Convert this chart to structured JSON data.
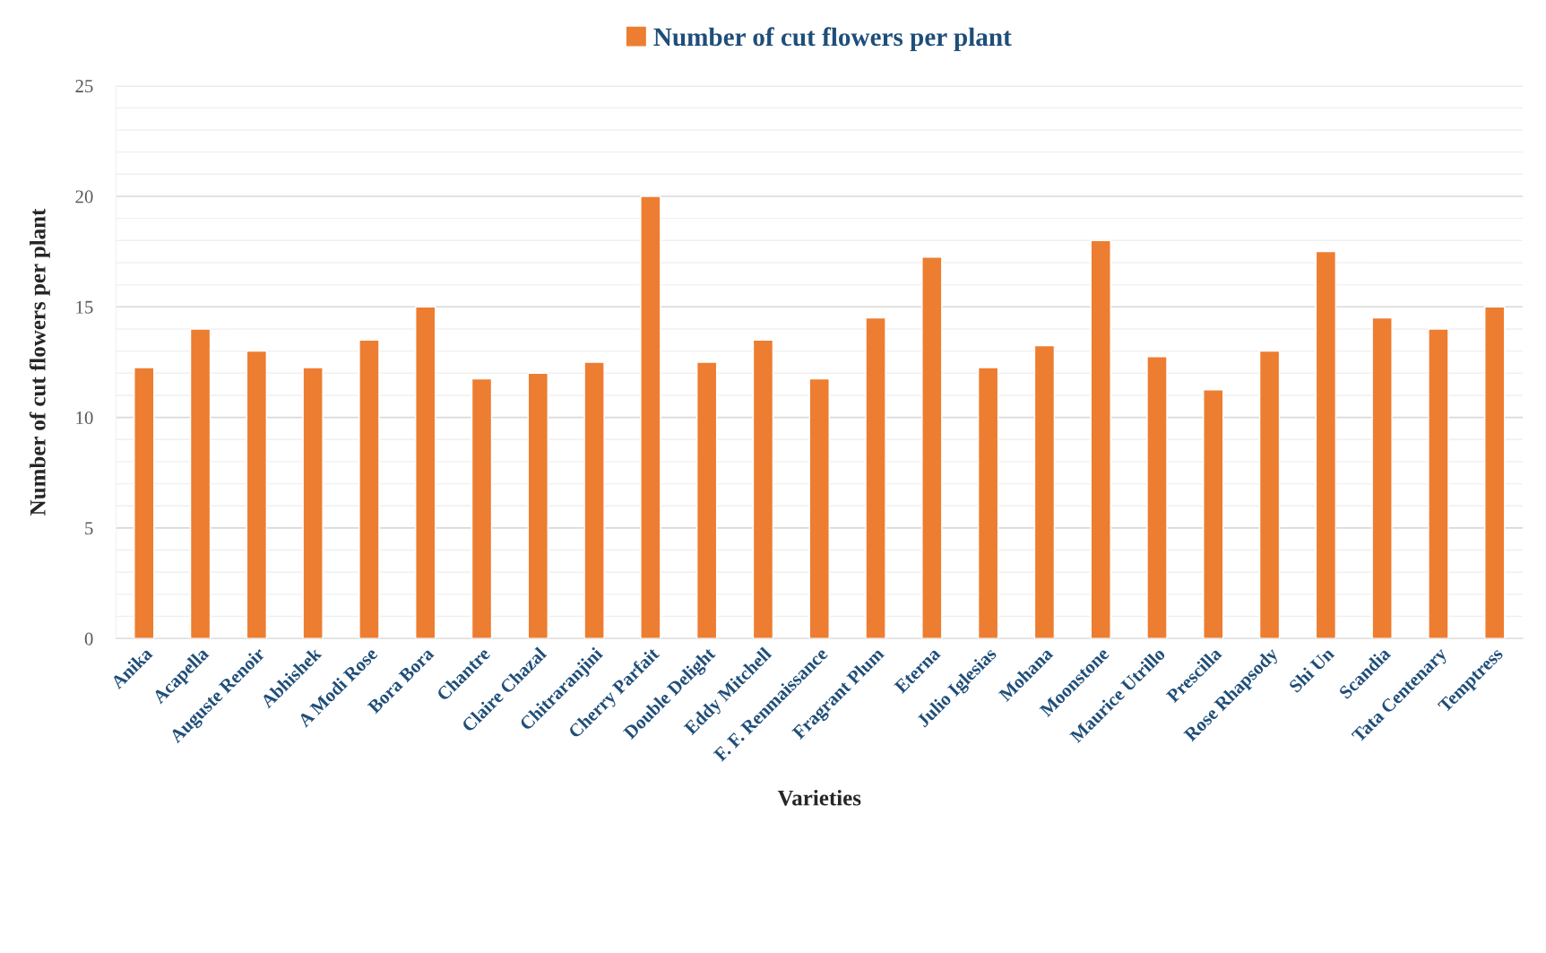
{
  "chart_data": {
    "type": "bar",
    "xlabel": "Varieties",
    "ylabel": "Number of cut flowers per plant",
    "categories": [
      "Anika",
      "Acapella",
      "Auguste Renoir",
      "Abhishek",
      "A Modi Rose",
      "Bora Bora",
      "Chantre",
      "Claire Chazal",
      "Chitraranjini",
      "Cherry Parfait",
      "Double Delight",
      "Eddy Mitchell",
      "F. F. Renmaissance",
      "Fragrant Plum",
      "Eterna",
      "Julio Iglesias",
      "Mohana",
      "Moonstone",
      "Maurice Utrillo",
      "Prescilla",
      "Rose Rhapsody",
      "Shi Un",
      "Scandia",
      "Tata Centenary",
      "Temptress"
    ],
    "series": [
      {
        "name": "Number of cut flowers per plant",
        "color": "#ed7d31",
        "values": [
          12.25,
          14,
          13,
          12.25,
          13.5,
          15,
          11.75,
          12,
          12.5,
          20,
          12.5,
          13.5,
          11.75,
          14.5,
          17.25,
          12.25,
          13.25,
          18,
          12.75,
          11.25,
          13,
          17.5,
          14.5,
          14,
          15
        ]
      }
    ],
    "ylim": [
      0,
      25
    ],
    "yticks": [
      0,
      {
        "value": 1,
        "label": null
      },
      {
        "value": 2,
        "label": null
      },
      {
        "value": 3,
        "label": null
      },
      {
        "value": 4,
        "label": null
      },
      5,
      {
        "value": 6,
        "label": null
      },
      {
        "value": 7,
        "label": null
      },
      {
        "value": 8,
        "label": null
      },
      {
        "value": 9,
        "label": null
      },
      10,
      {
        "value": 11,
        "label": null
      },
      {
        "value": 12,
        "label": null
      },
      {
        "value": 13,
        "label": null
      },
      {
        "value": 14,
        "label": null
      },
      15,
      {
        "value": 16,
        "label": null
      },
      {
        "value": 17,
        "label": null
      },
      {
        "value": 18,
        "label": null
      },
      {
        "value": 19,
        "label": null
      },
      20,
      {
        "value": 21,
        "label": null
      },
      {
        "value": 22,
        "label": null
      },
      {
        "value": 23,
        "label": null
      },
      {
        "value": 24,
        "label": null
      },
      25
    ],
    "grid": "y",
    "legend": "top"
  }
}
